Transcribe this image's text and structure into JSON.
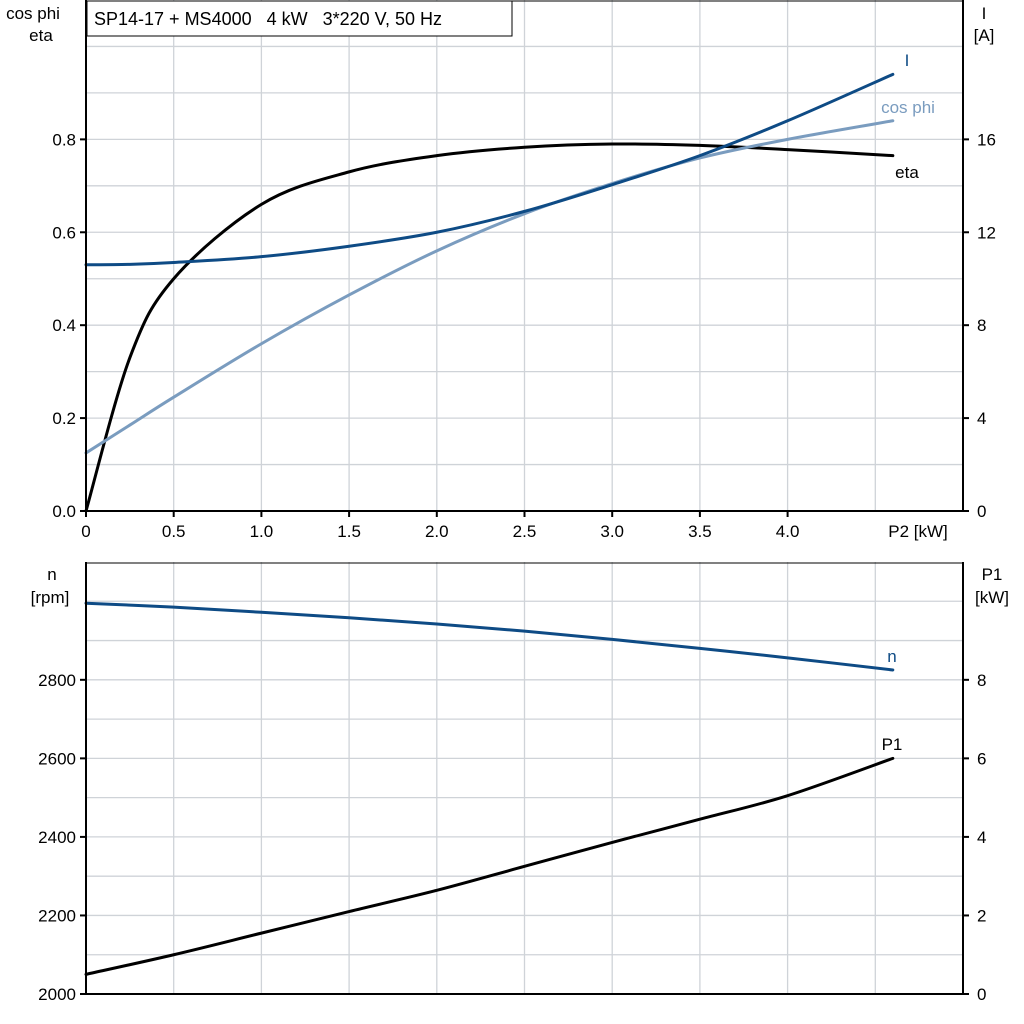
{
  "colors": {
    "eta": "#000000",
    "cos_phi": "#7a9cbf",
    "I": "#0e4b85",
    "n": "#0e4b85",
    "P1": "#000000"
  },
  "chart_data": [
    {
      "type": "line",
      "title": "SP14-17 + MS4000   4 kW   3*220 V, 50 Hz",
      "xlabel": "P2 [kW]",
      "ylabel_left": [
        "cos phi",
        "eta"
      ],
      "ylabel_right": [
        "I",
        "[A]"
      ],
      "xlim": [
        0,
        5
      ],
      "ylim_left": [
        0,
        1.1
      ],
      "ylim_right": [
        0,
        22
      ],
      "grid": true,
      "x_ticks": [
        "0",
        "0.5",
        "1.0",
        "1.5",
        "2.0",
        "2.5",
        "3.0",
        "3.5",
        "4.0"
      ],
      "y_left_ticks": [
        "0.0",
        "0.2",
        "0.4",
        "0.6",
        "0.8"
      ],
      "y_right_ticks": [
        "0",
        "4",
        "8",
        "12",
        "16"
      ],
      "x": [
        0,
        0.25,
        0.5,
        1.0,
        1.5,
        2.0,
        2.5,
        3.0,
        3.5,
        4.0,
        4.6
      ],
      "series": [
        {
          "name": "eta",
          "axis": "left",
          "values": [
            0,
            0.33,
            0.5,
            0.66,
            0.73,
            0.765,
            0.783,
            0.79,
            0.787,
            0.778,
            0.765
          ]
        },
        {
          "name": "cos phi",
          "axis": "left",
          "values": [
            0.125,
            0.185,
            0.245,
            0.36,
            0.465,
            0.56,
            0.64,
            0.705,
            0.76,
            0.8,
            0.84
          ]
        },
        {
          "name": "I",
          "axis": "right",
          "values": [
            10.6,
            10.62,
            10.7,
            10.95,
            11.4,
            12.0,
            12.9,
            14.05,
            15.3,
            16.8,
            18.8
          ]
        }
      ]
    },
    {
      "type": "line",
      "xlim": [
        0,
        5
      ],
      "ylabel_left": [
        "n",
        "[rpm]"
      ],
      "ylabel_right": [
        "P1",
        "[kW]"
      ],
      "ylim_left": [
        2000,
        3100
      ],
      "ylim_right": [
        0,
        11
      ],
      "grid": true,
      "y_left_ticks": [
        "2000",
        "2200",
        "2400",
        "2600",
        "2800"
      ],
      "y_right_ticks": [
        "0",
        "2",
        "4",
        "6",
        "8"
      ],
      "x": [
        0,
        0.5,
        1.0,
        1.5,
        2.0,
        2.5,
        3.0,
        3.5,
        4.0,
        4.6
      ],
      "series": [
        {
          "name": "n",
          "axis": "left",
          "values": [
            2995,
            2985,
            2972,
            2958,
            2942,
            2924,
            2903,
            2880,
            2856,
            2825
          ]
        },
        {
          "name": "P1",
          "axis": "right",
          "values": [
            0.5,
            1.0,
            1.55,
            2.1,
            2.64,
            3.25,
            3.86,
            4.45,
            5.05,
            6.0
          ]
        }
      ]
    }
  ]
}
